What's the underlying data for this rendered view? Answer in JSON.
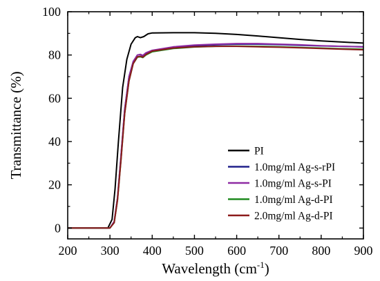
{
  "chart_data": {
    "type": "line",
    "xlabel": "Wavelength (cm",
    "xlabel_sup": "-1",
    "xlabel_end": ")",
    "ylabel": "Transmittance (%)",
    "xlim": [
      200,
      900
    ],
    "ylim": [
      -5,
      100
    ],
    "xticks": [
      "200",
      "300",
      "400",
      "500",
      "600",
      "700",
      "800",
      "900"
    ],
    "yticks": [
      "0",
      "20",
      "40",
      "60",
      "80",
      "100"
    ],
    "legend_position": "bottom-right",
    "series": [
      {
        "name": "PI",
        "color": "#000000",
        "points": [
          [
            200,
            0
          ],
          [
            295,
            0
          ],
          [
            305,
            4
          ],
          [
            312,
            18
          ],
          [
            320,
            40
          ],
          [
            330,
            65
          ],
          [
            340,
            78
          ],
          [
            350,
            85
          ],
          [
            360,
            88
          ],
          [
            365,
            88.5
          ],
          [
            372,
            88
          ],
          [
            380,
            88.5
          ],
          [
            390,
            89.8
          ],
          [
            400,
            90.2
          ],
          [
            450,
            90.3
          ],
          [
            500,
            90.3
          ],
          [
            550,
            90
          ],
          [
            600,
            89.5
          ],
          [
            650,
            88.8
          ],
          [
            700,
            88
          ],
          [
            750,
            87.2
          ],
          [
            800,
            86.5
          ],
          [
            850,
            86
          ],
          [
            900,
            85.5
          ]
        ]
      },
      {
        "name": "1.0mg/ml Ag-s-rPI",
        "color": "#1f1f8a",
        "points": [
          [
            200,
            0
          ],
          [
            300,
            0
          ],
          [
            310,
            3
          ],
          [
            318,
            14
          ],
          [
            326,
            33
          ],
          [
            335,
            55
          ],
          [
            345,
            70
          ],
          [
            355,
            77
          ],
          [
            365,
            80
          ],
          [
            372,
            80.2
          ],
          [
            378,
            79.6
          ],
          [
            385,
            80.8
          ],
          [
            400,
            82
          ],
          [
            450,
            83.5
          ],
          [
            500,
            84.3
          ],
          [
            550,
            84.7
          ],
          [
            600,
            85
          ],
          [
            650,
            85
          ],
          [
            700,
            84.8
          ],
          [
            750,
            84.5
          ],
          [
            800,
            84.2
          ],
          [
            850,
            84
          ],
          [
            900,
            83.8
          ]
        ]
      },
      {
        "name": "1.0mg/ml Ag-s-PI",
        "color": "#8e2aa3",
        "points": [
          [
            200,
            0
          ],
          [
            300,
            0
          ],
          [
            310,
            3
          ],
          [
            318,
            14
          ],
          [
            326,
            33
          ],
          [
            335,
            55
          ],
          [
            345,
            70
          ],
          [
            355,
            77
          ],
          [
            365,
            80
          ],
          [
            372,
            80.3
          ],
          [
            378,
            79.8
          ],
          [
            385,
            81
          ],
          [
            400,
            82.2
          ],
          [
            450,
            83.8
          ],
          [
            500,
            84.6
          ],
          [
            550,
            85
          ],
          [
            600,
            85.3
          ],
          [
            650,
            85.3
          ],
          [
            700,
            85
          ],
          [
            750,
            84.7
          ],
          [
            800,
            84.3
          ],
          [
            850,
            84
          ],
          [
            900,
            83.7
          ]
        ]
      },
      {
        "name": "1.0mg/ml Ag-d-PI",
        "color": "#1f8a1f",
        "points": [
          [
            200,
            0
          ],
          [
            300,
            0
          ],
          [
            310,
            2.5
          ],
          [
            318,
            13
          ],
          [
            326,
            31
          ],
          [
            335,
            53
          ],
          [
            345,
            68
          ],
          [
            355,
            76
          ],
          [
            365,
            79
          ],
          [
            372,
            79.2
          ],
          [
            378,
            78.8
          ],
          [
            385,
            80
          ],
          [
            400,
            81.5
          ],
          [
            450,
            83
          ],
          [
            500,
            83.7
          ],
          [
            550,
            84
          ],
          [
            600,
            84.1
          ],
          [
            650,
            84
          ],
          [
            700,
            83.8
          ],
          [
            750,
            83.5
          ],
          [
            800,
            83.2
          ],
          [
            850,
            82.9
          ],
          [
            900,
            82.7
          ]
        ]
      },
      {
        "name": "2.0mg/ml Ag-d-PI",
        "color": "#8b1a1a",
        "points": [
          [
            200,
            0
          ],
          [
            300,
            0
          ],
          [
            310,
            2.5
          ],
          [
            318,
            13
          ],
          [
            326,
            31
          ],
          [
            335,
            53
          ],
          [
            345,
            68
          ],
          [
            355,
            76
          ],
          [
            365,
            79.2
          ],
          [
            372,
            79.4
          ],
          [
            378,
            79
          ],
          [
            385,
            80.2
          ],
          [
            400,
            81.8
          ],
          [
            450,
            83.2
          ],
          [
            500,
            83.8
          ],
          [
            550,
            84
          ],
          [
            600,
            84
          ],
          [
            650,
            83.8
          ],
          [
            700,
            83.6
          ],
          [
            750,
            83.3
          ],
          [
            800,
            83
          ],
          [
            850,
            82.7
          ],
          [
            900,
            82.4
          ]
        ]
      }
    ]
  }
}
